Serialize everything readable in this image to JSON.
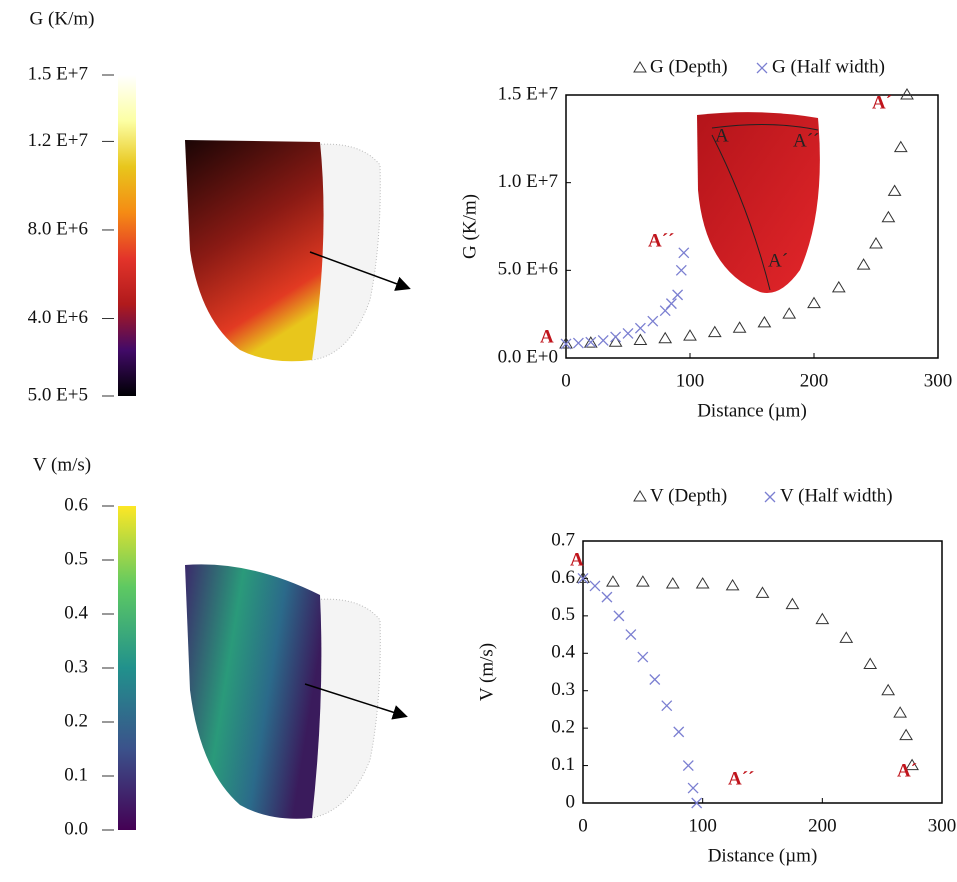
{
  "chart_data": [
    {
      "type": "colorbar",
      "title": "G (K/m)",
      "ylim": [
        500000,
        15000000
      ],
      "yticks": [
        {
          "value": 15000000,
          "label": "1.5 E+7"
        },
        {
          "value": 12000000,
          "label": "1.2 E+7"
        },
        {
          "value": 8000000,
          "label": "8.0 E+6"
        },
        {
          "value": 4000000,
          "label": "4.0 E+6"
        },
        {
          "value": 500000,
          "label": "5.0 E+5"
        }
      ],
      "colors": [
        "#000004",
        "#420a68",
        "#b01a1c",
        "#e3342a",
        "#f58b14",
        "#e8c61c",
        "#fcffa4",
        "#ffffff"
      ]
    },
    {
      "type": "scatter",
      "ylabel": "G (K/m)",
      "xlabel": "Distance (µm)",
      "xlim": [
        0,
        300
      ],
      "xticks": [
        0,
        100,
        200,
        300
      ],
      "ylim": [
        0,
        15000000
      ],
      "yticks": [
        {
          "value": 0,
          "label": "0.0 E+0"
        },
        {
          "value": 5000000,
          "label": "5.0 E+6"
        },
        {
          "value": 10000000,
          "label": "1.0 E+7"
        },
        {
          "value": 15000000,
          "label": "1.5 E+7"
        }
      ],
      "series": [
        {
          "name": "G (Depth)",
          "marker": "triangle",
          "color": "#333333",
          "x": [
            0,
            20,
            40,
            60,
            80,
            100,
            120,
            140,
            160,
            180,
            200,
            220,
            240,
            250,
            260,
            265,
            270,
            275
          ],
          "values": [
            800000,
            850000,
            900000,
            1000000,
            1100000,
            1250000,
            1450000,
            1700000,
            2000000,
            2500000,
            3100000,
            4000000,
            5300000,
            6500000,
            8000000,
            9500000,
            12000000,
            15000000
          ]
        },
        {
          "name": "G (Half width)",
          "marker": "x",
          "color": "#7b7fd1",
          "x": [
            0,
            10,
            20,
            30,
            40,
            50,
            60,
            70,
            80,
            85,
            90,
            93,
            95
          ],
          "values": [
            800000,
            850000,
            900000,
            1000000,
            1200000,
            1400000,
            1700000,
            2100000,
            2700000,
            3100000,
            3600000,
            5000000,
            6000000
          ]
        }
      ],
      "annotations": [
        "A",
        "A´",
        "A´´",
        "A",
        "A´´",
        "A´"
      ]
    },
    {
      "type": "colorbar",
      "title": "V (m/s)",
      "ylim": [
        0,
        0.6
      ],
      "yticks": [
        {
          "value": 0,
          "label": "0.0"
        },
        0.1,
        0.2,
        0.3,
        0.4,
        0.5,
        0.6
      ],
      "colors": [
        "#440154",
        "#3b528b",
        "#21918c",
        "#5ec962",
        "#fde725"
      ]
    },
    {
      "type": "scatter",
      "ylabel": "V (m/s)",
      "xlabel": "Distance (µm)",
      "xlim": [
        0,
        300
      ],
      "xticks": [
        0,
        100,
        200,
        300
      ],
      "ylim": [
        0,
        0.7
      ],
      "yticks": [
        0,
        0.1,
        0.2,
        0.3,
        0.4,
        0.5,
        0.6,
        0.7
      ],
      "series": [
        {
          "name": "V (Depth)",
          "marker": "triangle",
          "color": "#333333",
          "x": [
            0,
            25,
            50,
            75,
            100,
            125,
            150,
            175,
            200,
            220,
            240,
            255,
            265,
            270,
            275
          ],
          "values": [
            0.6,
            0.59,
            0.59,
            0.585,
            0.585,
            0.58,
            0.56,
            0.53,
            0.49,
            0.44,
            0.37,
            0.3,
            0.24,
            0.18,
            0.1
          ]
        },
        {
          "name": "V (Half width)",
          "marker": "x",
          "color": "#7b7fd1",
          "x": [
            0,
            10,
            20,
            30,
            40,
            50,
            60,
            70,
            80,
            88,
            92,
            95
          ],
          "values": [
            0.6,
            0.58,
            0.55,
            0.5,
            0.45,
            0.39,
            0.33,
            0.26,
            0.19,
            0.1,
            0.04,
            0
          ]
        }
      ],
      "annotations": [
        "A",
        "A´´",
        "A´"
      ]
    }
  ]
}
